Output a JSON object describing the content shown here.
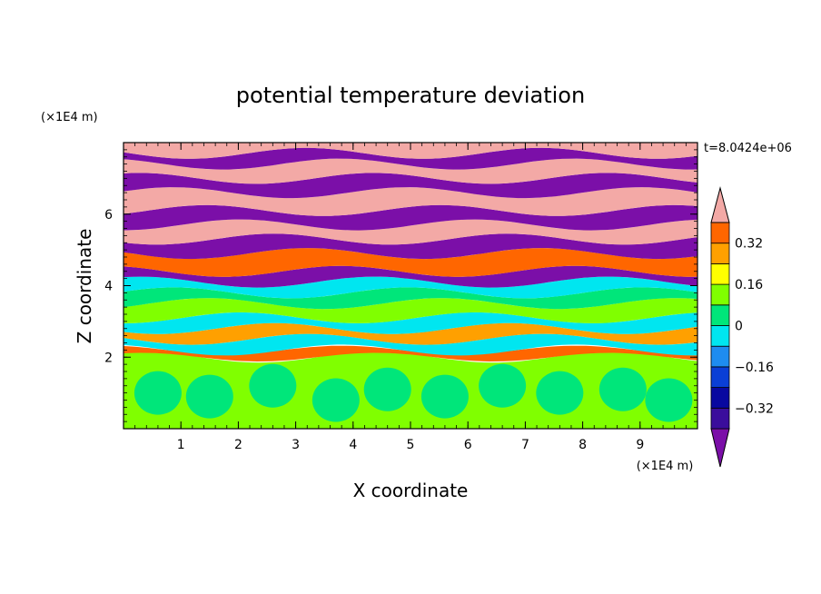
{
  "chart_data": {
    "type": "heatmap",
    "title": "potential temperature deviation",
    "xlabel": "X coordinate",
    "ylabel": "Z coordinate",
    "x_unit": "(×1E4 m)",
    "y_unit": "(×1E4 m)",
    "time_label": "t=8.0424e+06",
    "xlim": [
      0,
      10
    ],
    "ylim": [
      0,
      8
    ],
    "x_ticks": [
      "1",
      "2",
      "3",
      "4",
      "5",
      "6",
      "7",
      "8",
      "9"
    ],
    "y_ticks": [
      "2",
      "4",
      "6"
    ],
    "colorbar": {
      "levels": [
        -0.48,
        -0.4,
        -0.32,
        -0.24,
        -0.16,
        -0.08,
        0,
        0.08,
        0.16,
        0.24,
        0.32,
        0.4,
        0.48
      ],
      "colors": [
        "#7b0fa8",
        "#3a0d9c",
        "#0808a0",
        "#0a3fd6",
        "#1e8cf0",
        "#00e6f0",
        "#00e67a",
        "#80ff00",
        "#ffff00",
        "#ffa000",
        "#ff6600",
        "#ff2a1a",
        "#f3a9a6"
      ],
      "tick_labels": [
        "0.32",
        "0.16",
        "0",
        "−0.16",
        "−0.32"
      ],
      "tick_values": [
        0.32,
        0.16,
        0,
        -0.16,
        -0.32
      ]
    },
    "bands": [
      {
        "z0": 0.0,
        "z1": 2.0,
        "level": "#80ff00"
      },
      {
        "z0": 2.0,
        "z1": 2.2,
        "level": "#ff6600"
      },
      {
        "z0": 2.2,
        "z1": 2.5,
        "level": "#00e6f0"
      },
      {
        "z0": 2.5,
        "z1": 2.8,
        "level": "#ffa000"
      },
      {
        "z0": 2.8,
        "z1": 3.1,
        "level": "#00e6f0"
      },
      {
        "z0": 3.1,
        "z1": 3.5,
        "level": "#80ff00"
      },
      {
        "z0": 3.5,
        "z1": 3.8,
        "level": "#00e67a"
      },
      {
        "z0": 3.8,
        "z1": 4.1,
        "level": "#00e6f0"
      },
      {
        "z0": 4.1,
        "z1": 4.4,
        "level": "#7b0fa8"
      },
      {
        "z0": 4.4,
        "z1": 4.9,
        "level": "#ff6600"
      },
      {
        "z0": 4.9,
        "z1": 5.3,
        "level": "#7b0fa8"
      },
      {
        "z0": 5.3,
        "z1": 5.7,
        "level": "#f3a9a6"
      },
      {
        "z0": 5.7,
        "z1": 6.1,
        "level": "#7b0fa8"
      },
      {
        "z0": 6.1,
        "z1": 6.6,
        "level": "#f3a9a6"
      },
      {
        "z0": 6.6,
        "z1": 7.0,
        "level": "#7b0fa8"
      },
      {
        "z0": 7.0,
        "z1": 7.4,
        "level": "#f3a9a6"
      },
      {
        "z0": 7.4,
        "z1": 7.7,
        "level": "#7b0fa8"
      },
      {
        "z0": 7.7,
        "z1": 8.0,
        "level": "#f3a9a6"
      }
    ]
  }
}
